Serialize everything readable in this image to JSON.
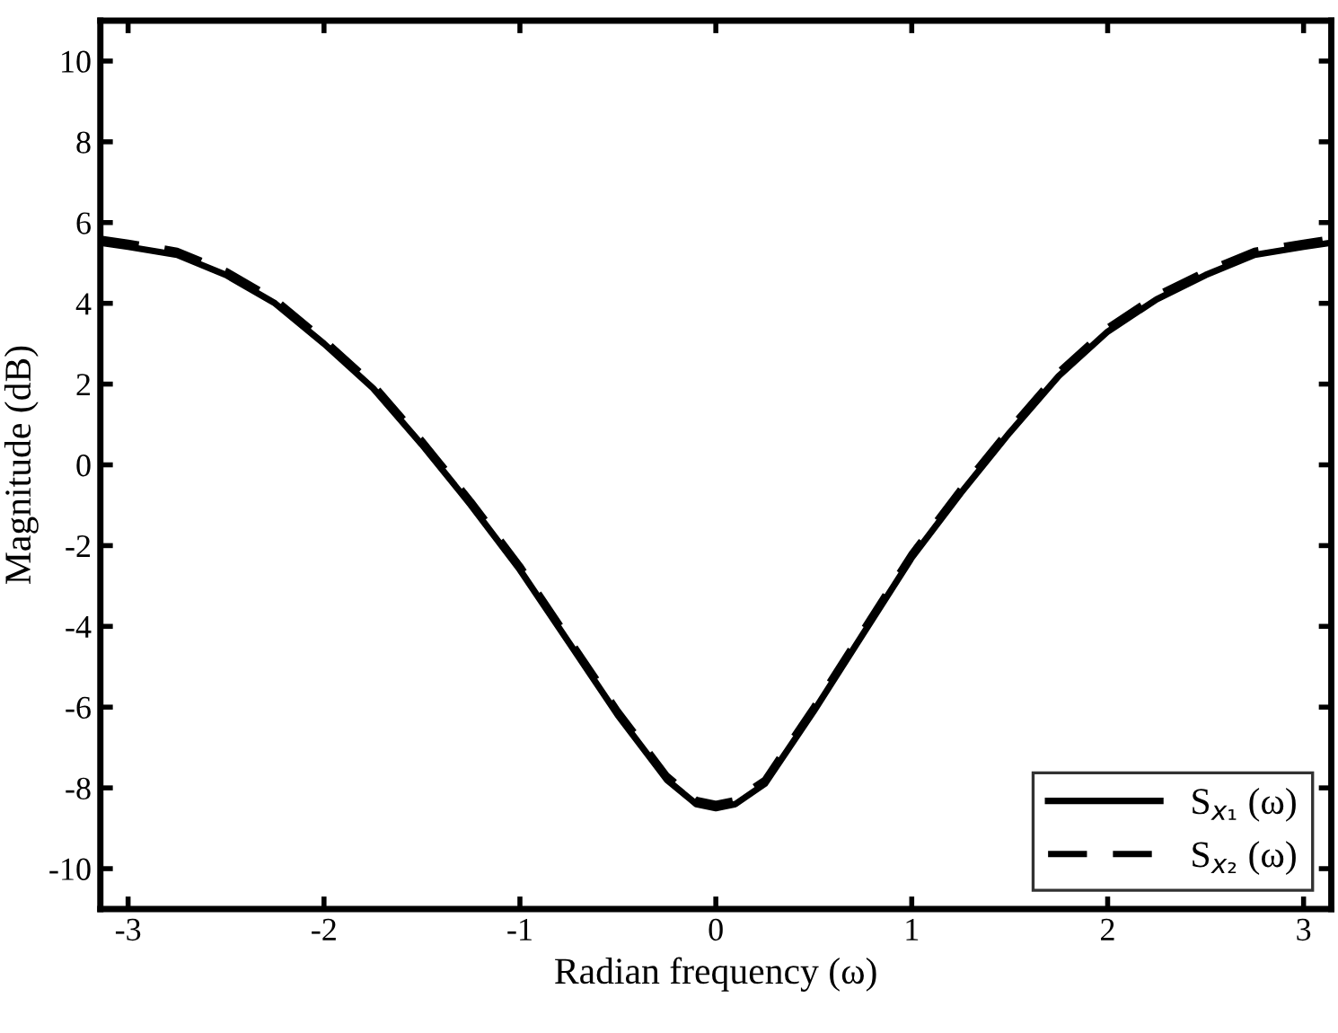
{
  "chart_data": {
    "type": "line",
    "xlabel": "Radian frequency (ω)",
    "ylabel": "Magnitude (dB)",
    "x": [
      -3.1416,
      -3.0,
      -2.75,
      -2.5,
      -2.25,
      -2.0,
      -1.75,
      -1.5,
      -1.25,
      -1.0,
      -0.75,
      -0.5,
      -0.25,
      -0.1,
      0.0,
      0.1,
      0.25,
      0.5,
      0.75,
      1.0,
      1.25,
      1.5,
      1.75,
      2.0,
      2.25,
      2.5,
      2.75,
      3.0,
      3.1416
    ],
    "series": [
      {
        "name": "S$_{x₁}$ (ω)",
        "color": "#000000",
        "line_style": "solid",
        "values": [
          5.5,
          5.4,
          5.2,
          4.7,
          4.0,
          3.0,
          1.9,
          0.5,
          -1.0,
          -2.6,
          -4.4,
          -6.2,
          -7.8,
          -8.4,
          -8.5,
          -8.4,
          -7.9,
          -6.1,
          -4.2,
          -2.3,
          -0.7,
          0.8,
          2.2,
          3.3,
          4.1,
          4.7,
          5.2,
          5.4,
          5.5
        ]
      },
      {
        "name": "S$_{x₂}$ (ω)",
        "color": "#000000",
        "line_style": "dashed",
        "values": [
          5.6,
          5.5,
          5.3,
          4.8,
          4.1,
          3.1,
          2.0,
          0.6,
          -0.9,
          -2.5,
          -4.3,
          -6.1,
          -7.7,
          -8.3,
          -8.4,
          -8.3,
          -7.8,
          -6.0,
          -4.1,
          -2.2,
          -0.6,
          0.9,
          2.3,
          3.4,
          4.2,
          4.8,
          5.3,
          5.5,
          5.6
        ]
      }
    ],
    "xlim": [
      -3.1416,
      3.1416
    ],
    "ylim": [
      -11,
      11
    ],
    "xticks": [
      -3,
      -2,
      -1,
      0,
      1,
      2,
      3
    ],
    "yticks": [
      -10,
      -8,
      -6,
      -4,
      -2,
      0,
      2,
      4,
      6,
      8,
      10
    ],
    "grid": false,
    "legend": "bottom right",
    "marker": "none"
  }
}
